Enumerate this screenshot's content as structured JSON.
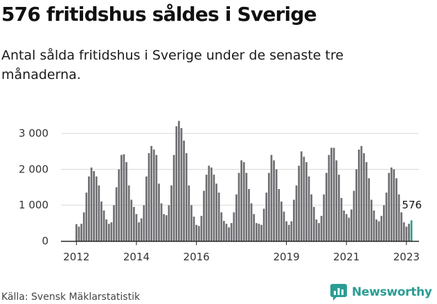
{
  "title": "576 fritidshus såldes i Sverige",
  "subtitle": "Antal sålda fritidshus i Sverige under de senaste tre månaderna.",
  "source": "Källa: Svensk Mäklarstatistik",
  "logo": {
    "text": "Newsworthy",
    "icon": "newsworthy-logo-icon",
    "color": "#2a9d93"
  },
  "colors": {
    "bar": "#6e6e72",
    "highlight": "#2a9d93",
    "axis": "#222222",
    "grid": "#d9d9d9"
  },
  "chart_data": {
    "type": "bar",
    "start": "2012-01",
    "interval": "month",
    "series": [
      {
        "values": [
          470,
          400,
          480,
          800,
          1350,
          1800,
          2050,
          1950,
          1800,
          1550,
          1100,
          850,
          600,
          480,
          520,
          1000,
          1500,
          2000,
          2400,
          2420,
          2200,
          1550,
          1150,
          950,
          750,
          520,
          630,
          1000,
          1800,
          2450,
          2650,
          2550,
          2400,
          1600,
          1050,
          750,
          720,
          1000,
          1550,
          2400,
          3200,
          3350,
          3150,
          2800,
          2450,
          1550,
          1000,
          680,
          450,
          420,
          700,
          1400,
          1850,
          2100,
          2050,
          1850,
          1600,
          1350,
          800,
          560,
          480,
          380,
          500,
          800,
          1300,
          1900,
          2250,
          2200,
          1900,
          1450,
          1050,
          750,
          500,
          480,
          450,
          900,
          1350,
          1900,
          2400,
          2250,
          2000,
          1450,
          1100,
          820,
          550,
          450,
          550,
          1150,
          1550,
          2100,
          2500,
          2350,
          2200,
          1800,
          1300,
          950,
          600,
          500,
          700,
          1300,
          1900,
          2400,
          2600,
          2600,
          2250,
          1850,
          1200,
          850,
          750,
          650,
          880,
          1400,
          2000,
          2550,
          2650,
          2450,
          2200,
          1750,
          1150,
          850,
          600,
          550,
          700,
          1000,
          1350,
          1900,
          2050,
          2000,
          1750,
          1300,
          800,
          520,
          400,
          480,
          576
        ]
      }
    ],
    "highlight": {
      "label": "576",
      "value": 576
    },
    "x_tick_labels": [
      "2012",
      "2014",
      "2016",
      "2019",
      "2021",
      "2023"
    ],
    "x_tick_years": [
      2012,
      2014,
      2016,
      2019,
      2021,
      2023
    ],
    "y_ticks": [
      0,
      1000,
      2000,
      3000
    ],
    "y_tick_labels": [
      "0",
      "1 000",
      "2 000",
      "3 000"
    ],
    "ylim": [
      0,
      3400
    ]
  }
}
